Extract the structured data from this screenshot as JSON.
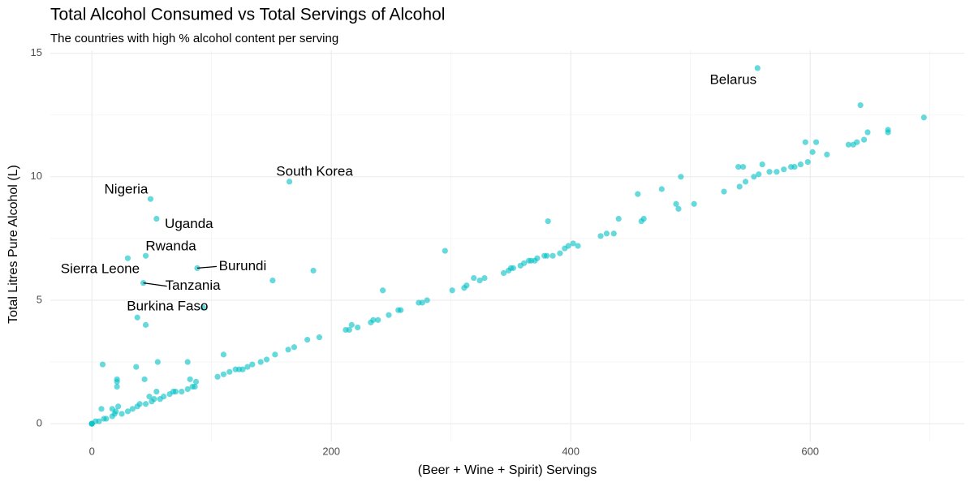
{
  "chart_data": {
    "type": "scatter",
    "title": "Total Alcohol Consumed vs Total Servings of Alcohol",
    "subtitle": "The countries with high % alcohol content per serving",
    "x_label": "(Beer + Wine + Spirit) Servings",
    "y_label": "Total Litres Pure Alcohol (L)",
    "xlim": [
      -34.7,
      728.7
    ],
    "ylim": [
      -0.72,
      15.12
    ],
    "xticks": [
      0,
      200,
      400,
      600
    ],
    "yticks": [
      0,
      5,
      10,
      15
    ],
    "x_minor_ticks": [
      100,
      300,
      500,
      700
    ],
    "y_minor_ticks": [
      2.5,
      7.5,
      12.5
    ],
    "grid": true,
    "color": "#00BFC4",
    "series": [
      {
        "x": [
          0,
          0,
          0,
          3,
          6,
          10,
          12,
          17,
          19,
          20,
          25,
          30,
          34,
          38,
          40,
          45,
          50,
          52,
          57,
          60,
          65,
          68,
          70,
          75,
          80,
          84,
          86,
          87,
          82,
          8,
          17,
          22,
          48,
          54,
          9,
          21,
          21,
          21,
          37,
          44,
          55,
          80,
          110,
          105,
          110,
          115,
          120,
          123,
          126,
          130,
          134,
          141,
          146,
          153,
          164,
          169,
          180,
          190,
          212,
          215,
          217,
          222,
          233,
          235,
          239,
          248,
          256,
          258,
          273,
          276,
          280,
          38,
          45,
          151,
          185,
          243,
          295,
          301,
          311,
          313,
          319,
          324,
          328,
          344,
          348,
          350,
          352,
          358,
          361,
          365,
          367,
          370,
          372,
          378,
          380,
          385,
          391,
          395,
          398,
          402,
          406,
          381,
          425,
          430,
          436,
          440,
          456,
          459,
          461,
          476,
          488,
          490,
          492,
          503,
          528,
          540,
          544,
          541,
          546,
          553,
          557,
          560,
          566,
          572,
          578,
          584,
          587,
          592,
          598,
          596,
          602,
          605,
          614,
          632,
          636,
          639,
          642,
          645,
          648,
          665,
          665,
          695
        ],
        "y": [
          0,
          0,
          0,
          0.1,
          0.1,
          0.2,
          0.2,
          0.3,
          0.4,
          0.5,
          0.4,
          0.5,
          0.6,
          0.7,
          0.8,
          0.8,
          0.9,
          1.0,
          1.0,
          1.1,
          1.2,
          1.3,
          1.3,
          1.3,
          1.4,
          1.5,
          1.5,
          1.7,
          1.8,
          0.6,
          0.6,
          0.7,
          1.1,
          1.3,
          2.4,
          1.8,
          1.7,
          1.5,
          2.3,
          1.8,
          2.5,
          2.5,
          2.8,
          1.9,
          2.0,
          2.1,
          2.2,
          2.2,
          2.2,
          2.3,
          2.4,
          2.5,
          2.6,
          2.8,
          3.0,
          3.1,
          3.4,
          3.5,
          3.8,
          3.8,
          4.0,
          3.9,
          4.1,
          4.2,
          4.2,
          4.4,
          4.6,
          4.6,
          4.9,
          4.9,
          5.0,
          4.3,
          4.0,
          5.8,
          6.2,
          5.4,
          7.0,
          5.4,
          5.5,
          5.6,
          5.9,
          5.8,
          5.9,
          6.1,
          6.2,
          6.3,
          6.3,
          6.4,
          6.5,
          6.6,
          6.6,
          6.6,
          6.7,
          6.8,
          6.8,
          6.8,
          6.9,
          7.1,
          7.2,
          7.3,
          7.2,
          8.2,
          7.6,
          7.7,
          7.7,
          8.3,
          9.3,
          8.2,
          8.3,
          9.5,
          8.9,
          8.7,
          10.0,
          8.9,
          9.4,
          10.4,
          10.4,
          9.6,
          9.8,
          10.0,
          10.1,
          10.5,
          10.2,
          10.2,
          10.3,
          10.4,
          10.4,
          10.5,
          10.6,
          11.4,
          11.0,
          11.4,
          10.9,
          11.3,
          11.3,
          11.4,
          12.9,
          11.5,
          11.8,
          11.9,
          11.8,
          12.4
        ]
      }
    ],
    "labeled_points": [
      {
        "name": "Belarus",
        "x": 556,
        "y": 14.4
      },
      {
        "name": "Nigeria",
        "x": 49,
        "y": 9.1
      },
      {
        "name": "Uganda",
        "x": 54,
        "y": 8.3
      },
      {
        "name": "Rwanda",
        "x": 45,
        "y": 6.8
      },
      {
        "name": "Sierra Leone",
        "x": 30,
        "y": 6.7
      },
      {
        "name": "Burundi",
        "x": 88,
        "y": 6.3
      },
      {
        "name": "Tanzania",
        "x": 43,
        "y": 5.7
      },
      {
        "name": "South Korea",
        "x": 165,
        "y": 9.8
      },
      {
        "name": "Burkina Faso",
        "x": 93,
        "y": 4.7
      }
    ]
  }
}
